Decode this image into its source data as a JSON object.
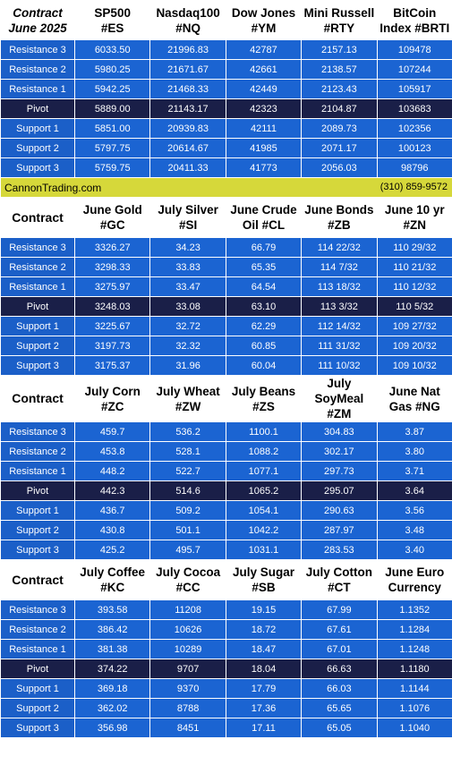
{
  "banner": {
    "site": "CannonTrading.com",
    "phone": "(310) 859-9572"
  },
  "row_labels": [
    "Resistance 3",
    "Resistance 2",
    "Resistance 1",
    "Pivot",
    "Support 1",
    "Support 2",
    "Support 3"
  ],
  "blocks": [
    {
      "first_header": [
        "Contract",
        "June 2025"
      ],
      "columns": [
        {
          "lines": [
            "SP500",
            "#ES"
          ],
          "values": [
            "6033.50",
            "5980.25",
            "5942.25",
            "5889.00",
            "5851.00",
            "5797.75",
            "5759.75"
          ]
        },
        {
          "lines": [
            "Nasdaq100",
            "#NQ"
          ],
          "values": [
            "21996.83",
            "21671.67",
            "21468.33",
            "21143.17",
            "20939.83",
            "20614.67",
            "20411.33"
          ]
        },
        {
          "lines": [
            "Dow Jones",
            "#YM"
          ],
          "values": [
            "42787",
            "42661",
            "42449",
            "42323",
            "42111",
            "41985",
            "41773"
          ]
        },
        {
          "lines": [
            "Mini Russell",
            "#RTY"
          ],
          "values": [
            "2157.13",
            "2138.57",
            "2123.43",
            "2104.87",
            "2089.73",
            "2071.17",
            "2056.03"
          ]
        },
        {
          "lines": [
            "BitCoin",
            "Index #BRTI"
          ],
          "values": [
            "109478",
            "107244",
            "105917",
            "103683",
            "102356",
            "100123",
            "98796"
          ]
        }
      ]
    },
    {
      "first_header": [
        "Contract"
      ],
      "columns": [
        {
          "lines": [
            "June Gold",
            "#GC"
          ],
          "values": [
            "3326.27",
            "3298.33",
            "3275.97",
            "3248.03",
            "3225.67",
            "3197.73",
            "3175.37"
          ]
        },
        {
          "lines": [
            "July Silver",
            "#SI"
          ],
          "values": [
            "34.23",
            "33.83",
            "33.47",
            "33.08",
            "32.72",
            "32.32",
            "31.96"
          ]
        },
        {
          "lines": [
            "June Crude",
            "Oil #CL"
          ],
          "values": [
            "66.79",
            "65.35",
            "64.54",
            "63.10",
            "62.29",
            "60.85",
            "60.04"
          ]
        },
        {
          "lines": [
            "June Bonds",
            "#ZB"
          ],
          "values": [
            "114 22/32",
            "114  7/32",
            "113 18/32",
            "113  3/32",
            "112 14/32",
            "111 31/32",
            "111 10/32"
          ]
        },
        {
          "lines": [
            "June 10 yr",
            "#ZN"
          ],
          "values": [
            "110 29/32",
            "110 21/32",
            "110 12/32",
            "110  5/32",
            "109 27/32",
            "109 20/32",
            "109 10/32"
          ]
        }
      ]
    },
    {
      "first_header": [
        "Contract"
      ],
      "columns": [
        {
          "lines": [
            "July Corn",
            "#ZC"
          ],
          "values": [
            "459.7",
            "453.8",
            "448.2",
            "442.3",
            "436.7",
            "430.8",
            "425.2"
          ]
        },
        {
          "lines": [
            "July  Wheat",
            "#ZW"
          ],
          "values": [
            "536.2",
            "528.1",
            "522.7",
            "514.6",
            "509.2",
            "501.1",
            "495.7"
          ]
        },
        {
          "lines": [
            "July Beans",
            "#ZS"
          ],
          "values": [
            "1100.1",
            "1088.2",
            "1077.1",
            "1065.2",
            "1054.1",
            "1042.2",
            "1031.1"
          ]
        },
        {
          "lines": [
            "July",
            "SoyMeal",
            "#ZM"
          ],
          "values": [
            "304.83",
            "302.17",
            "297.73",
            "295.07",
            "290.63",
            "287.97",
            "283.53"
          ]
        },
        {
          "lines": [
            "June Nat",
            "Gas #NG"
          ],
          "values": [
            "3.87",
            "3.80",
            "3.71",
            "3.64",
            "3.56",
            "3.48",
            "3.40"
          ]
        }
      ]
    },
    {
      "first_header": [
        "Contract"
      ],
      "columns": [
        {
          "lines": [
            "July Coffee",
            "#KC"
          ],
          "values": [
            "393.58",
            "386.42",
            "381.38",
            "374.22",
            "369.18",
            "362.02",
            "356.98"
          ]
        },
        {
          "lines": [
            "July Cocoa",
            "#CC"
          ],
          "values": [
            "11208",
            "10626",
            "10289",
            "9707",
            "9370",
            "8788",
            "8451"
          ]
        },
        {
          "lines": [
            "July Sugar",
            "#SB"
          ],
          "values": [
            "19.15",
            "18.72",
            "18.47",
            "18.04",
            "17.79",
            "17.36",
            "17.11"
          ]
        },
        {
          "lines": [
            "July Cotton",
            "#CT"
          ],
          "values": [
            "67.99",
            "67.61",
            "67.01",
            "66.63",
            "66.03",
            "65.65",
            "65.05"
          ]
        },
        {
          "lines": [
            "June Euro",
            "Currency"
          ],
          "values": [
            "1.1352",
            "1.1284",
            "1.1248",
            "1.1180",
            "1.1144",
            "1.1076",
            "1.1040"
          ]
        }
      ]
    }
  ]
}
